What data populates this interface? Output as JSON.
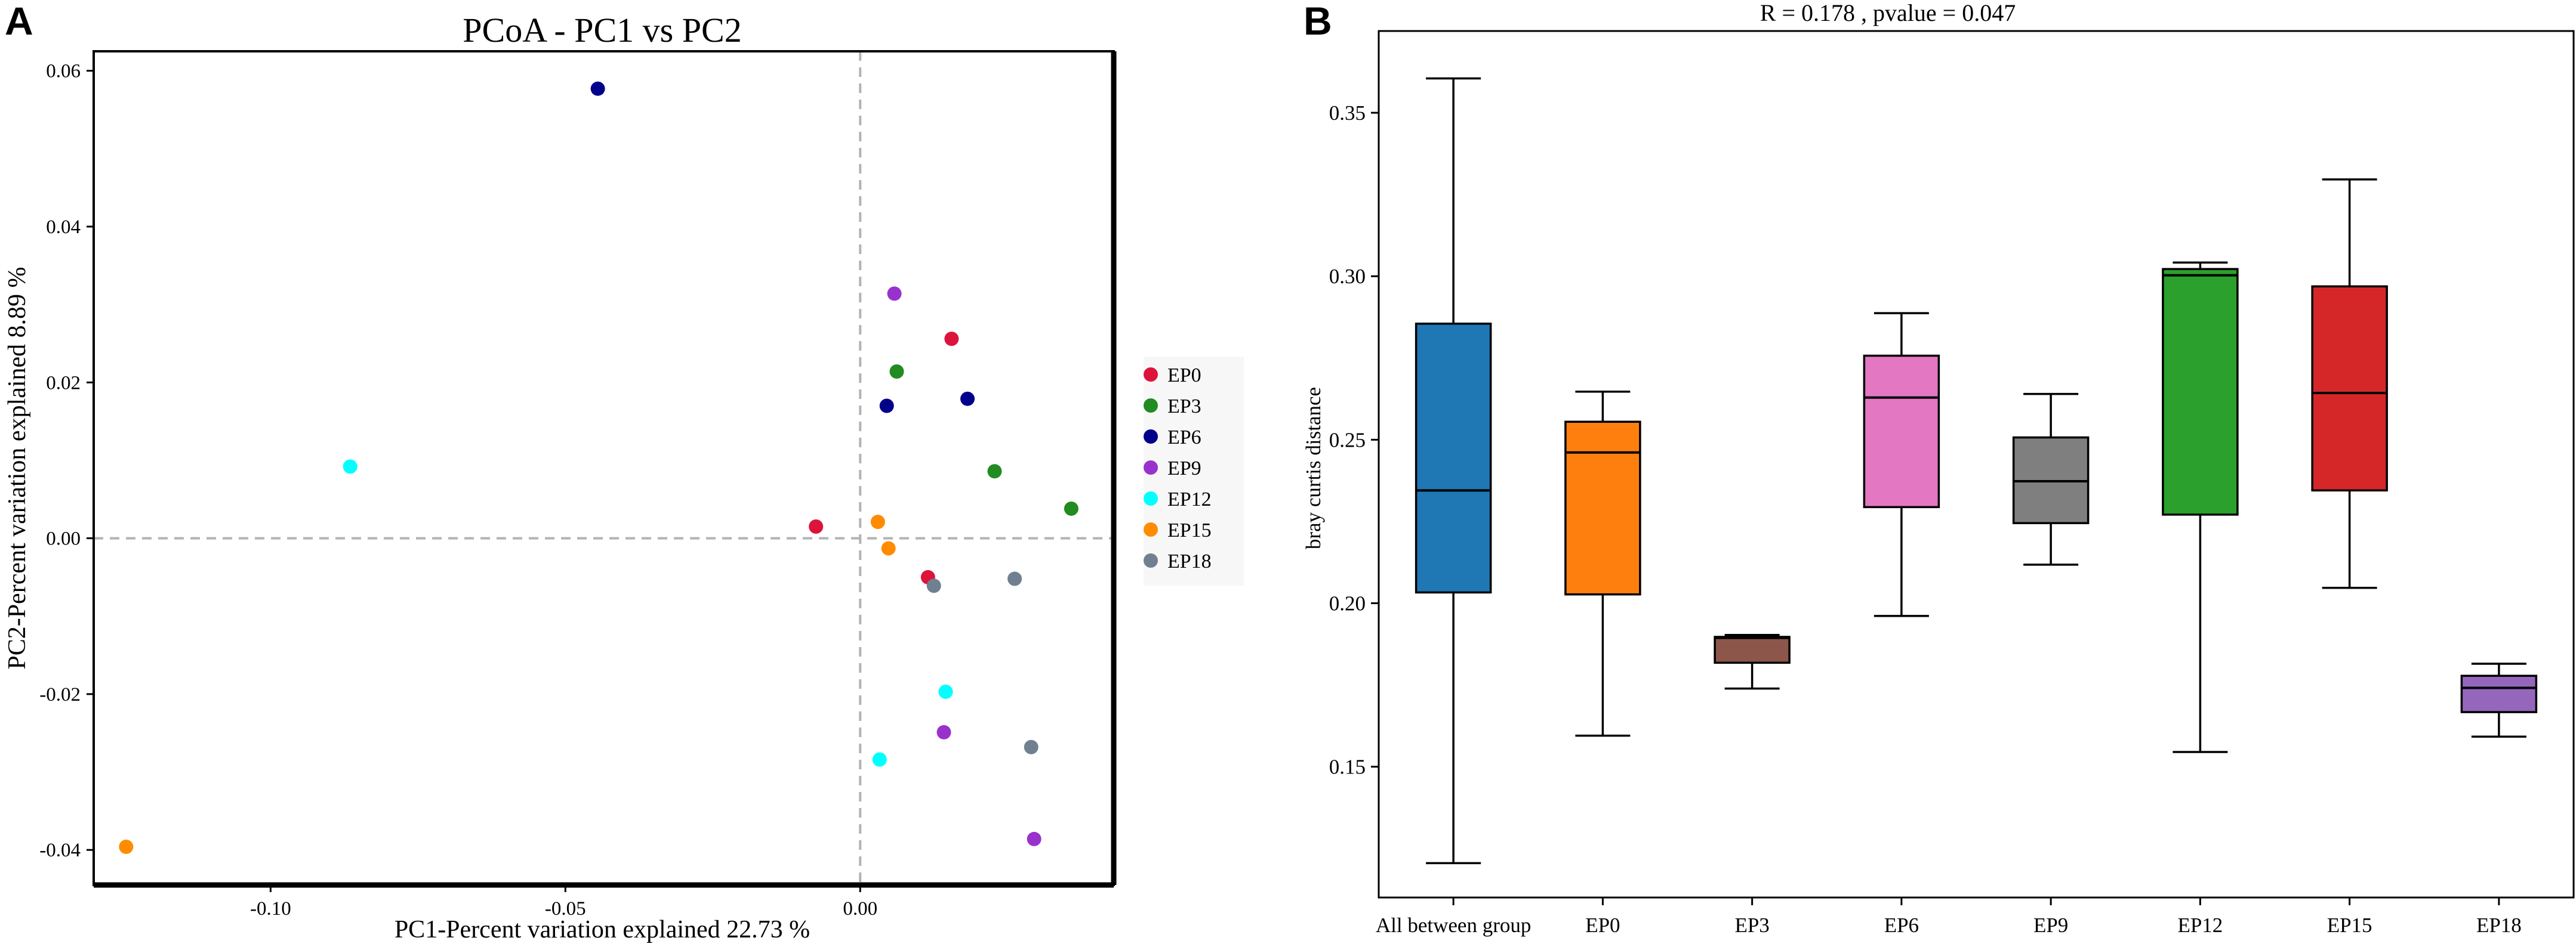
{
  "panels": {
    "a_letter": "A",
    "b_letter": "B"
  },
  "chart_data": [
    {
      "type": "scatter",
      "title": "PCoA - PC1 vs PC2",
      "xlabel": "PC1-Percent variation explained 22.73 %",
      "ylabel": "PC2-Percent variation explained 8.89 %",
      "xlim": [
        -0.13,
        0.043
      ],
      "ylim": [
        -0.0445,
        0.0625
      ],
      "xticks": [
        -0.1,
        -0.05,
        0.0
      ],
      "xtick_labels": [
        "-0.10",
        "-0.05",
        "0.00"
      ],
      "yticks": [
        -0.04,
        -0.02,
        0.0,
        0.02,
        0.04,
        0.06
      ],
      "ytick_labels": [
        "-0.04",
        "-0.02",
        "0.00",
        "0.02",
        "0.04",
        "0.06"
      ],
      "reference_lines": {
        "x": 0,
        "y": 0
      },
      "legend_position": "right",
      "series": [
        {
          "name": "EP0",
          "color": "#DC143C",
          "points": [
            [
              -0.0075,
              0.0015
            ],
            [
              0.0155,
              0.0256
            ],
            [
              0.0115,
              -0.005
            ]
          ]
        },
        {
          "name": "EP3",
          "color": "#228B22",
          "points": [
            [
              0.0062,
              0.0214
            ],
            [
              0.0228,
              0.0086
            ],
            [
              0.0358,
              0.0038
            ]
          ]
        },
        {
          "name": "EP6",
          "color": "#00008B",
          "points": [
            [
              -0.0445,
              0.0577
            ],
            [
              0.0045,
              0.017
            ],
            [
              0.0182,
              0.0179
            ]
          ]
        },
        {
          "name": "EP9",
          "color": "#9932CC",
          "points": [
            [
              0.0058,
              0.0314
            ],
            [
              0.0142,
              -0.0249
            ],
            [
              0.0295,
              -0.0386
            ]
          ]
        },
        {
          "name": "EP12",
          "color": "#00FFFF",
          "points": [
            [
              -0.0865,
              0.0092
            ],
            [
              0.0145,
              -0.0197
            ],
            [
              0.0033,
              -0.0284
            ]
          ]
        },
        {
          "name": "EP15",
          "color": "#FF8C00",
          "points": [
            [
              -0.1245,
              -0.0396
            ],
            [
              0.003,
              0.0021
            ],
            [
              0.0048,
              -0.0013
            ]
          ]
        },
        {
          "name": "EP18",
          "color": "#708090",
          "points": [
            [
              0.0125,
              -0.0061
            ],
            [
              0.0262,
              -0.0052
            ],
            [
              0.029,
              -0.0268
            ]
          ]
        }
      ]
    },
    {
      "type": "box",
      "title": "R = 0.178 , pvalue = 0.047",
      "xlabel": "",
      "ylabel": "bray curtis distance",
      "ylim": [
        0.11,
        0.375
      ],
      "yticks": [
        0.15,
        0.2,
        0.25,
        0.3,
        0.35
      ],
      "ytick_labels": [
        "0.15",
        "0.20",
        "0.25",
        "0.30",
        "0.35"
      ],
      "categories": [
        "All between group",
        "EP0",
        "EP3",
        "EP6",
        "EP9",
        "EP12",
        "EP15",
        "EP18"
      ],
      "boxes": [
        {
          "name": "All between group",
          "color": "#1F77B4",
          "whisker_low": 0.1205,
          "q1": 0.2033,
          "median": 0.2345,
          "q3": 0.2855,
          "whisker_high": 0.3605
        },
        {
          "name": "EP0",
          "color": "#FF7F0E",
          "whisker_low": 0.1595,
          "q1": 0.2027,
          "median": 0.2461,
          "q3": 0.2555,
          "whisker_high": 0.2647
        },
        {
          "name": "EP3",
          "color": "#8C564B",
          "whisker_low": 0.1739,
          "q1": 0.1818,
          "median": 0.1894,
          "q3": 0.1897,
          "whisker_high": 0.1903
        },
        {
          "name": "EP6",
          "color": "#E377C2",
          "whisker_low": 0.1961,
          "q1": 0.2294,
          "median": 0.2629,
          "q3": 0.2757,
          "whisker_high": 0.2887
        },
        {
          "name": "EP9",
          "color": "#7F7F7F",
          "whisker_low": 0.2118,
          "q1": 0.2245,
          "median": 0.2373,
          "q3": 0.2507,
          "whisker_high": 0.264
        },
        {
          "name": "EP12",
          "color": "#2CA02C",
          "whisker_low": 0.1545,
          "q1": 0.2271,
          "median": 0.3003,
          "q3": 0.3022,
          "whisker_high": 0.3042
        },
        {
          "name": "EP15",
          "color": "#D62728",
          "whisker_low": 0.2047,
          "q1": 0.2345,
          "median": 0.2643,
          "q3": 0.2969,
          "whisker_high": 0.3296
        },
        {
          "name": "EP18",
          "color": "#9467BD",
          "whisker_low": 0.1592,
          "q1": 0.1667,
          "median": 0.1741,
          "q3": 0.1778,
          "whisker_high": 0.1815
        }
      ]
    }
  ]
}
